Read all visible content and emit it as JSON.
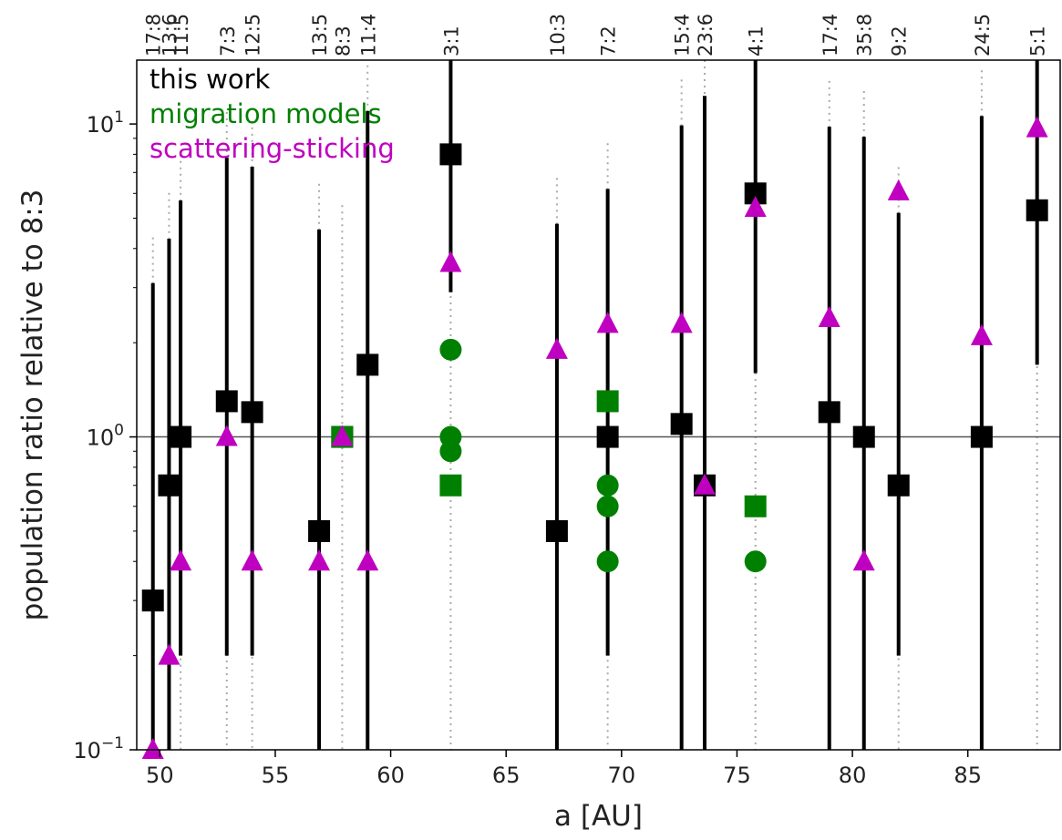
{
  "chart_data": {
    "type": "scatter",
    "xlabel": "a [AU]",
    "ylabel": "population ratio relative to 8:3",
    "xlim": [
      49,
      89
    ],
    "ylim": [
      0.1,
      16
    ],
    "yscale": "log",
    "x_ticks": [
      50,
      55,
      60,
      65,
      70,
      75,
      80,
      85
    ],
    "y_ticks": [
      {
        "value": 0.1,
        "base": "10",
        "exp": "−1"
      },
      {
        "value": 1,
        "base": "10",
        "exp": "0"
      },
      {
        "value": 10,
        "base": "10",
        "exp": "1"
      }
    ],
    "reference_line": 1,
    "grid": false,
    "legend_placement": "top-left",
    "resonances": [
      {
        "label": "17:8",
        "a": 49.7
      },
      {
        "label": "13:6",
        "a": 50.4
      },
      {
        "label": "11:5",
        "a": 50.9
      },
      {
        "label": "7:3",
        "a": 52.9
      },
      {
        "label": "12:5",
        "a": 54.0
      },
      {
        "label": "13:5",
        "a": 56.9
      },
      {
        "label": "8:3",
        "a": 57.9
      },
      {
        "label": "11:4",
        "a": 59.0
      },
      {
        "label": "3:1",
        "a": 62.6
      },
      {
        "label": "10:3",
        "a": 67.2
      },
      {
        "label": "7:2",
        "a": 69.4
      },
      {
        "label": "15:4",
        "a": 72.6
      },
      {
        "label": "23:6",
        "a": 73.6
      },
      {
        "label": "4:1",
        "a": 75.8
      },
      {
        "label": "17:4",
        "a": 79.0
      },
      {
        "label": "35:8",
        "a": 80.5
      },
      {
        "label": "9:2",
        "a": 82.0
      },
      {
        "label": "24:5",
        "a": 85.6
      },
      {
        "label": "5:1",
        "a": 88.0
      }
    ],
    "series": [
      {
        "name": "this work",
        "color": "#000000",
        "marker": "square",
        "points": [
          {
            "x": 49.7,
            "y": 0.3,
            "lo": 0.1,
            "hi": 3.1
          },
          {
            "x": 50.4,
            "y": 0.7,
            "lo": 0.1,
            "hi": 4.3
          },
          {
            "x": 50.9,
            "y": 1.0,
            "lo": 0.2,
            "hi": 5.7
          },
          {
            "x": 52.9,
            "y": 1.3,
            "lo": 0.2,
            "hi": 7.8
          },
          {
            "x": 54.0,
            "y": 1.2,
            "lo": 0.2,
            "hi": 7.3
          },
          {
            "x": 56.9,
            "y": 0.5,
            "lo": 0.1,
            "hi": 4.6
          },
          {
            "x": 57.9,
            "y": 1.0
          },
          {
            "x": 59.0,
            "y": 1.7,
            "lo": 0.1,
            "hi": 11.0
          },
          {
            "x": 62.6,
            "y": 8.0,
            "lo": 2.9,
            "hi": 16.0
          },
          {
            "x": 67.2,
            "y": 0.5,
            "lo": 0.1,
            "hi": 4.8
          },
          {
            "x": 69.4,
            "y": 1.0,
            "lo": 0.2,
            "hi": 6.2
          },
          {
            "x": 72.6,
            "y": 1.1,
            "lo": 0.1,
            "hi": 9.9
          },
          {
            "x": 73.6,
            "y": 0.7,
            "lo": 0.1,
            "hi": 12.3
          },
          {
            "x": 75.8,
            "y": 6.0,
            "lo": 1.6,
            "hi": 16.0
          },
          {
            "x": 79.0,
            "y": 1.2,
            "lo": 0.1,
            "hi": 9.8
          },
          {
            "x": 80.5,
            "y": 1.0,
            "lo": 0.1,
            "hi": 9.1
          },
          {
            "x": 82.0,
            "y": 0.7,
            "lo": 0.2,
            "hi": 5.2
          },
          {
            "x": 85.6,
            "y": 1.0,
            "lo": 0.1,
            "hi": 10.6
          },
          {
            "x": 88.0,
            "y": 5.3,
            "lo": 1.7,
            "hi": 16.0
          }
        ]
      },
      {
        "name": "migration models",
        "color": "#008000",
        "points": [
          {
            "x": 62.6,
            "y": 1.9,
            "marker": "circle"
          },
          {
            "x": 62.6,
            "y": 1.0,
            "marker": "circle"
          },
          {
            "x": 62.6,
            "y": 0.9,
            "marker": "circle"
          },
          {
            "x": 62.6,
            "y": 0.7,
            "marker": "square"
          },
          {
            "x": 57.9,
            "y": 1.0,
            "marker": "square"
          },
          {
            "x": 69.4,
            "y": 1.3,
            "marker": "square"
          },
          {
            "x": 69.4,
            "y": 0.7,
            "marker": "circle"
          },
          {
            "x": 69.4,
            "y": 0.6,
            "marker": "circle"
          },
          {
            "x": 69.4,
            "y": 0.4,
            "marker": "circle"
          },
          {
            "x": 75.8,
            "y": 0.6,
            "marker": "square"
          },
          {
            "x": 75.8,
            "y": 0.4,
            "marker": "circle"
          }
        ]
      },
      {
        "name": "scattering-sticking",
        "color": "#c000c0",
        "marker": "triangle",
        "points": [
          {
            "x": 49.7,
            "y": 0.1
          },
          {
            "x": 50.4,
            "y": 0.2
          },
          {
            "x": 50.9,
            "y": 0.4
          },
          {
            "x": 52.9,
            "y": 1.0
          },
          {
            "x": 54.0,
            "y": 0.4
          },
          {
            "x": 56.9,
            "y": 0.4
          },
          {
            "x": 57.9,
            "y": 1.0
          },
          {
            "x": 59.0,
            "y": 0.4
          },
          {
            "x": 62.6,
            "y": 3.6
          },
          {
            "x": 67.2,
            "y": 1.9
          },
          {
            "x": 69.4,
            "y": 2.3
          },
          {
            "x": 72.6,
            "y": 2.3
          },
          {
            "x": 73.6,
            "y": 0.7
          },
          {
            "x": 75.8,
            "y": 5.4
          },
          {
            "x": 79.0,
            "y": 2.4
          },
          {
            "x": 80.5,
            "y": 0.4
          },
          {
            "x": 82.0,
            "y": 6.1
          },
          {
            "x": 85.6,
            "y": 2.1
          },
          {
            "x": 88.0,
            "y": 9.7
          }
        ]
      }
    ]
  }
}
